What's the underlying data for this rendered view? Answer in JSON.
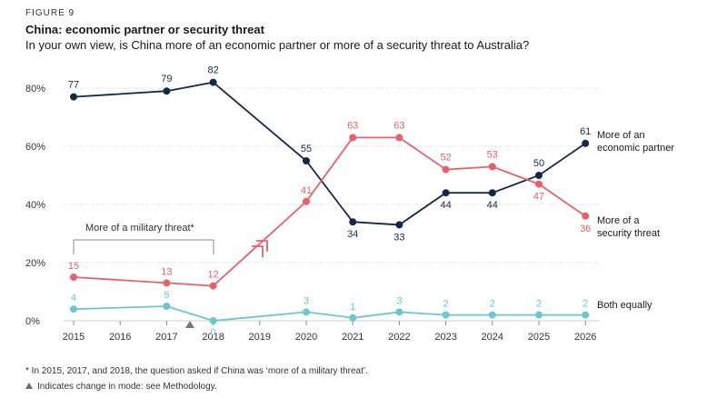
{
  "figure_label": "FIGURE 9",
  "title": "China: economic partner or security threat",
  "subtitle": "In your own view, is China more of an economic partner or more of a security threat to Australia?",
  "footnote": "* In 2015, 2017, and 2018, the question asked if China was ‘more of a military threat’.",
  "mode_note": "Indicates change in mode: see Methodology.",
  "chart_data": {
    "type": "line",
    "x": [
      "2015",
      "2016",
      "2017",
      "2018",
      "2019",
      "2020",
      "2021",
      "2022",
      "2023",
      "2024",
      "2025",
      "2026"
    ],
    "ylim": [
      0,
      85
    ],
    "yticks": [
      "0%",
      "20%",
      "40%",
      "60%",
      "80%"
    ],
    "grid": true,
    "series": [
      {
        "name": "More of an economic partner",
        "color": "#14294a",
        "values": [
          77,
          null,
          79,
          82,
          null,
          55,
          34,
          33,
          44,
          44,
          50,
          61
        ],
        "label_values": [
          "77",
          null,
          "79",
          "82",
          null,
          "55",
          "34",
          "33",
          "44",
          "44",
          "50",
          "61"
        ]
      },
      {
        "name": "More of a security threat",
        "color": "#e8606a",
        "values": [
          15,
          null,
          13,
          12,
          null,
          41,
          63,
          63,
          52,
          53,
          47,
          36
        ],
        "label_values": [
          "15",
          null,
          "13",
          "12",
          null,
          "41",
          "63",
          "63",
          "52",
          "53",
          "47",
          "36"
        ]
      },
      {
        "name": "Both equally",
        "color": "#6cc6cf",
        "values": [
          4,
          null,
          5,
          0,
          null,
          3,
          1,
          3,
          2,
          2,
          2,
          2
        ],
        "label_values": [
          "4",
          null,
          "5",
          "0",
          null,
          "3",
          "1",
          "3",
          "2",
          "2",
          "2",
          "2"
        ]
      }
    ],
    "annotations": {
      "military_threat": "More of a military threat*",
      "mode_change_marker": "between 2017 and 2018"
    }
  }
}
